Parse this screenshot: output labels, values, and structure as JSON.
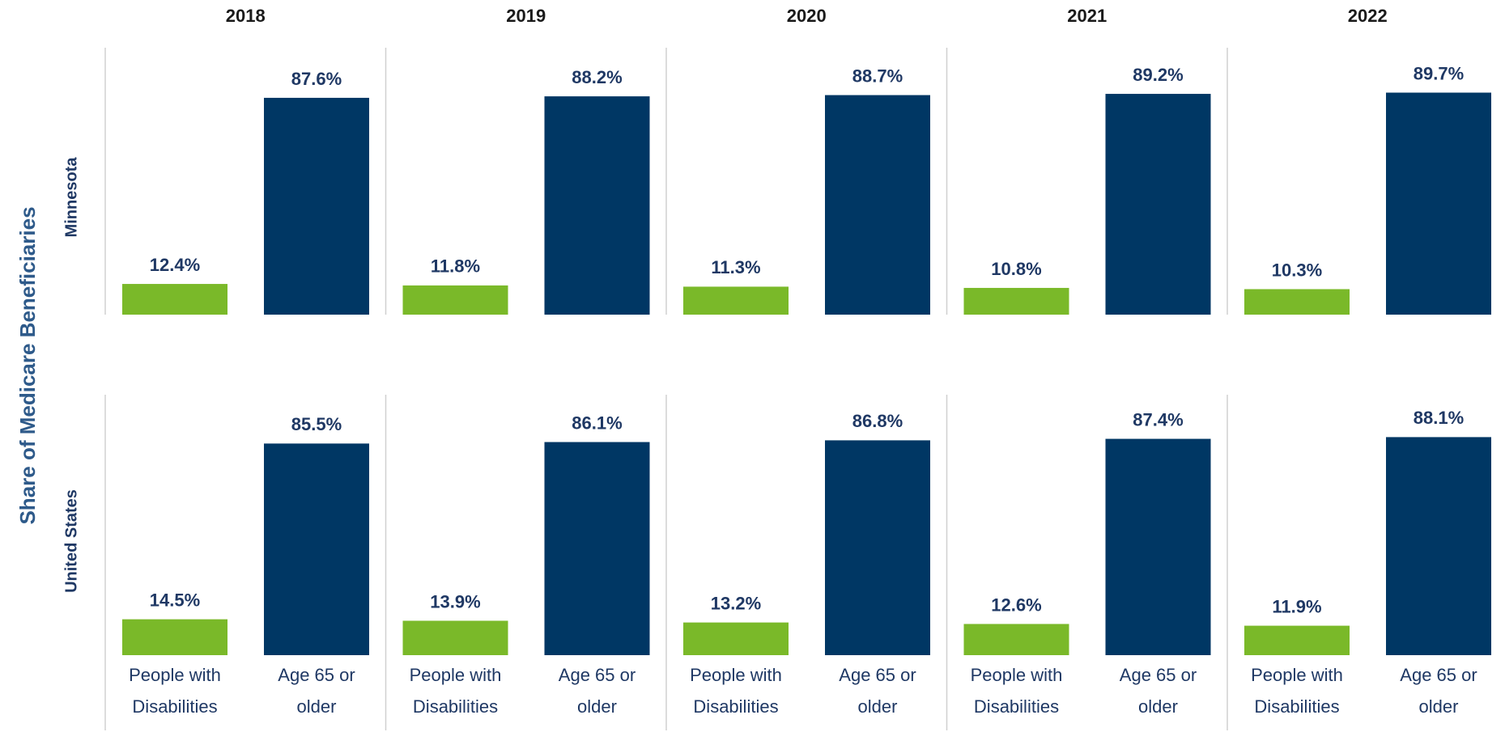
{
  "chart_data": {
    "type": "bar",
    "ylabel": "Share of Medicare Beneficiaries",
    "columns": [
      "2018",
      "2019",
      "2020",
      "2021",
      "2022"
    ],
    "rows": [
      "Minnesota",
      "United States"
    ],
    "categories": [
      "People with Disabilities",
      "Age 65 or older"
    ],
    "colors": [
      "#7ab929",
      "#003764"
    ],
    "ylim": [
      0,
      100
    ],
    "values": [
      [
        [
          12.4,
          87.6
        ],
        [
          11.8,
          88.2
        ],
        [
          11.3,
          88.7
        ],
        [
          10.8,
          89.2
        ],
        [
          10.3,
          89.7
        ]
      ],
      [
        [
          14.5,
          85.5
        ],
        [
          13.9,
          86.1
        ],
        [
          13.2,
          86.8
        ],
        [
          12.6,
          87.4
        ],
        [
          11.9,
          88.1
        ]
      ]
    ],
    "value_labels": [
      [
        [
          "12.4%",
          "87.6%"
        ],
        [
          "11.8%",
          "88.2%"
        ],
        [
          "11.3%",
          "88.7%"
        ],
        [
          "10.8%",
          "89.2%"
        ],
        [
          "10.3%",
          "89.7%"
        ]
      ],
      [
        [
          "14.5%",
          "85.5%"
        ],
        [
          "13.9%",
          "86.1%"
        ],
        [
          "13.2%",
          "86.8%"
        ],
        [
          "12.6%",
          "87.4%"
        ],
        [
          "11.9%",
          "88.1%"
        ]
      ]
    ]
  }
}
